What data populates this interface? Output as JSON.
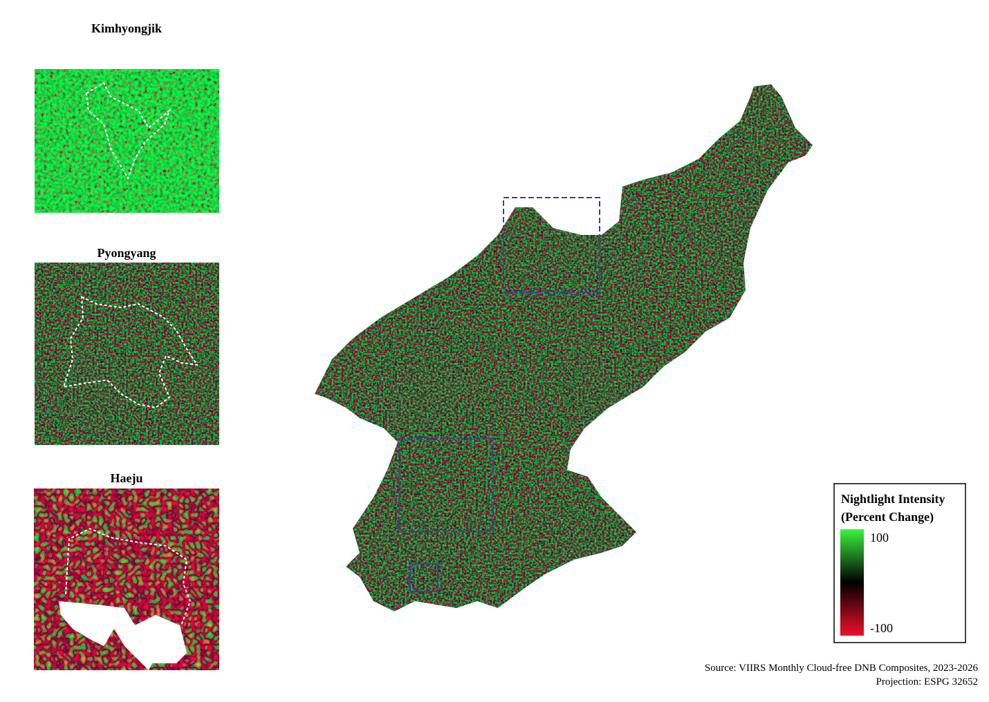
{
  "insets": [
    {
      "title": "Kimhyongjik"
    },
    {
      "title": "Pyongyang"
    },
    {
      "title": "Haeju"
    }
  ],
  "legend": {
    "title_lines": [
      "Nightlight Intensity",
      "(Percent Change)"
    ],
    "max_label": 100,
    "min_label": -100
  },
  "footer": {
    "source": "Source: VIIRS Monthly Cloud-free DNB Composites, 2023-2026",
    "projection": "Projection: ESPG 32652"
  }
}
